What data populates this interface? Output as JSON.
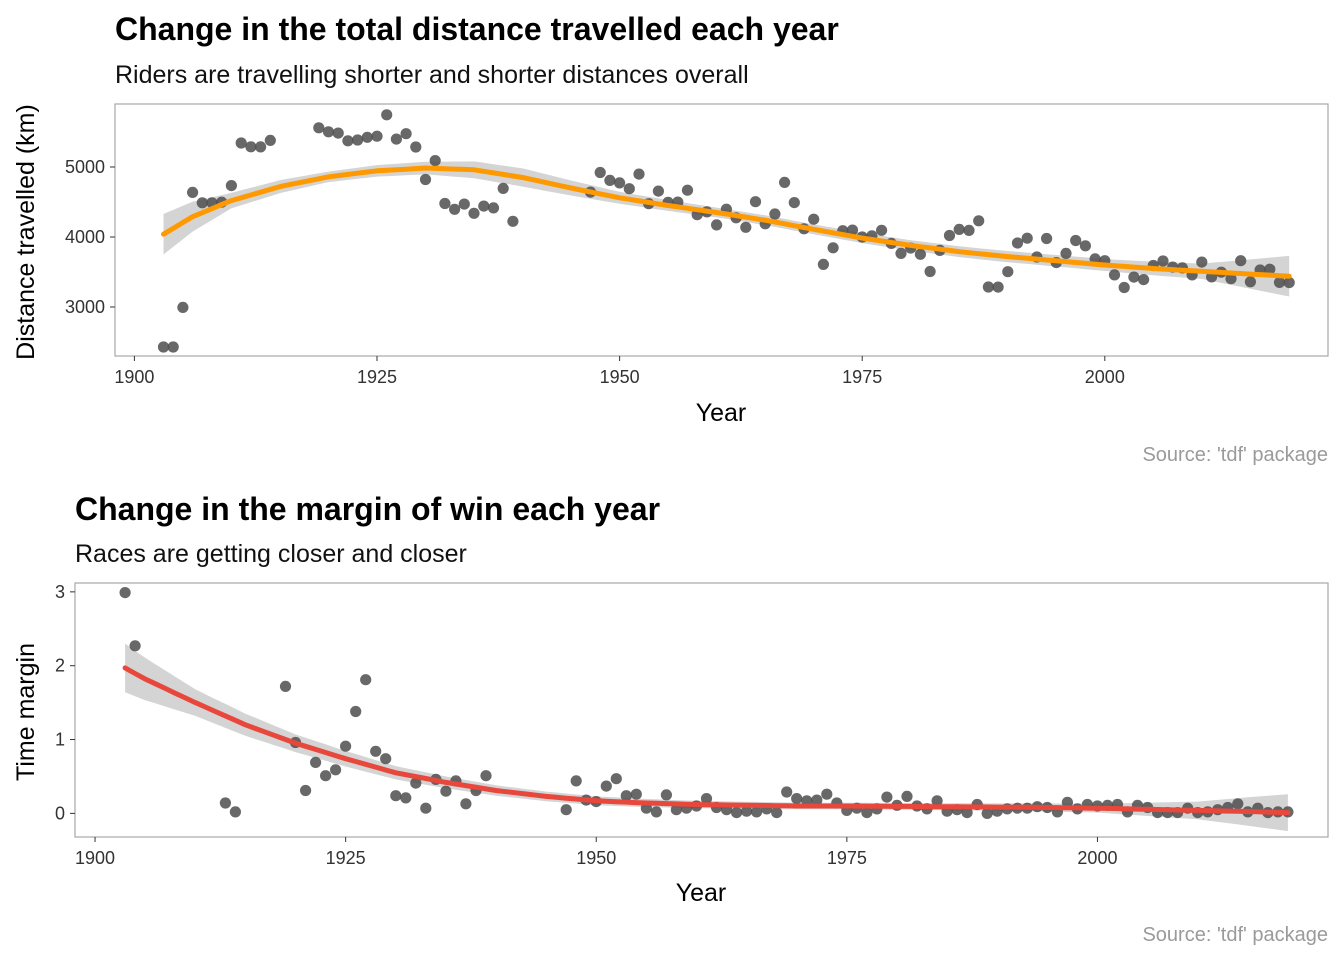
{
  "chart_data": [
    {
      "type": "scatter",
      "title": "Change in the total distance travelled each year",
      "subtitle": "Riders are travelling shorter and shorter distances overall",
      "xlabel": "Year",
      "ylabel": "Distance travelled (km)",
      "caption": "Source: 'tdf' package",
      "xlim": [
        1898,
        2023
      ],
      "ylim": [
        2300,
        5900
      ],
      "xticks": [
        1900,
        1925,
        1950,
        1975,
        2000
      ],
      "yticks": [
        3000,
        4000,
        5000
      ],
      "point_color": "#4d4d4d",
      "smooth_color": "#ff9900",
      "ribbon_color": "#cccccc",
      "grid": false,
      "points": [
        [
          1903,
          2428
        ],
        [
          1904,
          2428
        ],
        [
          1905,
          2994
        ],
        [
          1906,
          4637
        ],
        [
          1907,
          4488
        ],
        [
          1908,
          4488
        ],
        [
          1909,
          4497
        ],
        [
          1910,
          4734
        ],
        [
          1911,
          5343
        ],
        [
          1912,
          5289
        ],
        [
          1913,
          5287
        ],
        [
          1914,
          5380
        ],
        [
          1919,
          5560
        ],
        [
          1920,
          5503
        ],
        [
          1921,
          5485
        ],
        [
          1922,
          5375
        ],
        [
          1923,
          5386
        ],
        [
          1924,
          5425
        ],
        [
          1925,
          5440
        ],
        [
          1926,
          5745
        ],
        [
          1927,
          5398
        ],
        [
          1928,
          5476
        ],
        [
          1929,
          5286
        ],
        [
          1930,
          4822
        ],
        [
          1931,
          5091
        ],
        [
          1932,
          4479
        ],
        [
          1933,
          4395
        ],
        [
          1934,
          4470
        ],
        [
          1935,
          4338
        ],
        [
          1936,
          4442
        ],
        [
          1937,
          4415
        ],
        [
          1938,
          4694
        ],
        [
          1939,
          4224
        ],
        [
          1947,
          4642
        ],
        [
          1948,
          4922
        ],
        [
          1949,
          4808
        ],
        [
          1950,
          4773
        ],
        [
          1951,
          4690
        ],
        [
          1952,
          4898
        ],
        [
          1953,
          4476
        ],
        [
          1954,
          4656
        ],
        [
          1955,
          4495
        ],
        [
          1956,
          4498
        ],
        [
          1957,
          4669
        ],
        [
          1958,
          4319
        ],
        [
          1959,
          4358
        ],
        [
          1960,
          4173
        ],
        [
          1961,
          4397
        ],
        [
          1962,
          4274
        ],
        [
          1963,
          4138
        ],
        [
          1964,
          4504
        ],
        [
          1965,
          4188
        ],
        [
          1966,
          4329
        ],
        [
          1967,
          4780
        ],
        [
          1968,
          4492
        ],
        [
          1969,
          4117
        ],
        [
          1970,
          4254
        ],
        [
          1971,
          3608
        ],
        [
          1972,
          3846
        ],
        [
          1973,
          4090
        ],
        [
          1974,
          4098
        ],
        [
          1975,
          4000
        ],
        [
          1976,
          4017
        ],
        [
          1977,
          4096
        ],
        [
          1978,
          3908
        ],
        [
          1979,
          3765
        ],
        [
          1980,
          3842
        ],
        [
          1981,
          3753
        ],
        [
          1982,
          3507
        ],
        [
          1983,
          3809
        ],
        [
          1984,
          4021
        ],
        [
          1985,
          4109
        ],
        [
          1986,
          4094
        ],
        [
          1987,
          4231
        ],
        [
          1988,
          3286
        ],
        [
          1989,
          3285
        ],
        [
          1990,
          3504
        ],
        [
          1991,
          3914
        ],
        [
          1992,
          3983
        ],
        [
          1993,
          3714
        ],
        [
          1994,
          3978
        ],
        [
          1995,
          3635
        ],
        [
          1996,
          3765
        ],
        [
          1997,
          3950
        ],
        [
          1998,
          3875
        ],
        [
          1999,
          3687
        ],
        [
          2000,
          3662
        ],
        [
          2001,
          3458
        ],
        [
          2002,
          3278
        ],
        [
          2003,
          3427
        ],
        [
          2004,
          3391
        ],
        [
          2005,
          3593
        ],
        [
          2006,
          3657
        ],
        [
          2007,
          3570
        ],
        [
          2008,
          3559
        ],
        [
          2009,
          3459
        ],
        [
          2010,
          3642
        ],
        [
          2011,
          3430
        ],
        [
          2012,
          3497
        ],
        [
          2013,
          3404
        ],
        [
          2014,
          3661
        ],
        [
          2015,
          3360
        ],
        [
          2016,
          3529
        ],
        [
          2017,
          3540
        ],
        [
          2018,
          3351
        ],
        [
          2019,
          3349
        ]
      ],
      "smooth": [
        [
          1903,
          4040
        ],
        [
          1906,
          4290
        ],
        [
          1910,
          4520
        ],
        [
          1915,
          4720
        ],
        [
          1920,
          4860
        ],
        [
          1925,
          4945
        ],
        [
          1930,
          4985
        ],
        [
          1935,
          4960
        ],
        [
          1940,
          4850
        ],
        [
          1945,
          4700
        ],
        [
          1950,
          4560
        ],
        [
          1955,
          4450
        ],
        [
          1960,
          4350
        ],
        [
          1965,
          4240
        ],
        [
          1970,
          4110
        ],
        [
          1975,
          3985
        ],
        [
          1980,
          3880
        ],
        [
          1985,
          3790
        ],
        [
          1990,
          3720
        ],
        [
          1995,
          3660
        ],
        [
          2000,
          3600
        ],
        [
          2005,
          3550
        ],
        [
          2010,
          3510
        ],
        [
          2015,
          3470
        ],
        [
          2019,
          3440
        ]
      ],
      "ribbon_halfwidth": [
        [
          1903,
          290
        ],
        [
          1910,
          110
        ],
        [
          1920,
          75
        ],
        [
          1930,
          90
        ],
        [
          1935,
          120
        ],
        [
          1940,
          130
        ],
        [
          1950,
          85
        ],
        [
          1960,
          70
        ],
        [
          1970,
          70
        ],
        [
          1980,
          75
        ],
        [
          1990,
          80
        ],
        [
          2000,
          85
        ],
        [
          2010,
          110
        ],
        [
          2019,
          290
        ]
      ]
    },
    {
      "type": "scatter",
      "title": "Change in the margin of win each year",
      "subtitle": "Races are getting closer and closer",
      "xlabel": "Year",
      "ylabel": "Time margin",
      "caption": "Source: 'tdf' package",
      "xlim": [
        1898,
        2023
      ],
      "ylim": [
        -0.32,
        3.12
      ],
      "xticks": [
        1900,
        1925,
        1950,
        1975,
        2000
      ],
      "yticks": [
        0,
        1,
        2,
        3
      ],
      "point_color": "#4d4d4d",
      "smooth_color": "#e8473c",
      "ribbon_color": "#cccccc",
      "grid": false,
      "points": [
        [
          1903,
          2.99
        ],
        [
          1904,
          2.27
        ],
        [
          1913,
          0.14
        ],
        [
          1914,
          0.02
        ],
        [
          1919,
          1.72
        ],
        [
          1920,
          0.96
        ],
        [
          1921,
          0.31
        ],
        [
          1922,
          0.69
        ],
        [
          1923,
          0.51
        ],
        [
          1924,
          0.59
        ],
        [
          1925,
          0.91
        ],
        [
          1926,
          1.38
        ],
        [
          1927,
          1.81
        ],
        [
          1928,
          0.84
        ],
        [
          1929,
          0.74
        ],
        [
          1930,
          0.24
        ],
        [
          1931,
          0.21
        ],
        [
          1932,
          0.41
        ],
        [
          1933,
          0.07
        ],
        [
          1934,
          0.46
        ],
        [
          1935,
          0.3
        ],
        [
          1936,
          0.44
        ],
        [
          1937,
          0.13
        ],
        [
          1938,
          0.31
        ],
        [
          1939,
          0.51
        ],
        [
          1947,
          0.05
        ],
        [
          1948,
          0.44
        ],
        [
          1949,
          0.18
        ],
        [
          1950,
          0.16
        ],
        [
          1951,
          0.37
        ],
        [
          1952,
          0.47
        ],
        [
          1953,
          0.24
        ],
        [
          1954,
          0.26
        ],
        [
          1955,
          0.07
        ],
        [
          1956,
          0.02
        ],
        [
          1957,
          0.25
        ],
        [
          1958,
          0.05
        ],
        [
          1959,
          0.07
        ],
        [
          1960,
          0.1
        ],
        [
          1961,
          0.2
        ],
        [
          1962,
          0.08
        ],
        [
          1963,
          0.05
        ],
        [
          1964,
          0.01
        ],
        [
          1965,
          0.03
        ],
        [
          1966,
          0.02
        ],
        [
          1967,
          0.06
        ],
        [
          1968,
          0.01
        ],
        [
          1969,
          0.29
        ],
        [
          1970,
          0.2
        ],
        [
          1971,
          0.17
        ],
        [
          1972,
          0.18
        ],
        [
          1973,
          0.26
        ],
        [
          1974,
          0.14
        ],
        [
          1975,
          0.04
        ],
        [
          1976,
          0.07
        ],
        [
          1977,
          0.01
        ],
        [
          1978,
          0.06
        ],
        [
          1979,
          0.22
        ],
        [
          1980,
          0.11
        ],
        [
          1981,
          0.23
        ],
        [
          1982,
          0.1
        ],
        [
          1983,
          0.06
        ],
        [
          1984,
          0.17
        ],
        [
          1985,
          0.03
        ],
        [
          1986,
          0.05
        ],
        [
          1987,
          0.01
        ],
        [
          1988,
          0.12
        ],
        [
          1989,
          0.0
        ],
        [
          1990,
          0.03
        ],
        [
          1991,
          0.06
        ],
        [
          1992,
          0.07
        ],
        [
          1993,
          0.07
        ],
        [
          1994,
          0.09
        ],
        [
          1995,
          0.08
        ],
        [
          1996,
          0.02
        ],
        [
          1997,
          0.15
        ],
        [
          1998,
          0.06
        ],
        [
          1999,
          0.12
        ],
        [
          2000,
          0.1
        ],
        [
          2001,
          0.11
        ],
        [
          2002,
          0.12
        ],
        [
          2003,
          0.02
        ],
        [
          2004,
          0.11
        ],
        [
          2005,
          0.08
        ],
        [
          2006,
          0.01
        ],
        [
          2007,
          0.01
        ],
        [
          2008,
          0.01
        ],
        [
          2009,
          0.07
        ],
        [
          2010,
          0.01
        ],
        [
          2011,
          0.02
        ],
        [
          2012,
          0.05
        ],
        [
          2013,
          0.08
        ],
        [
          2014,
          0.13
        ],
        [
          2015,
          0.02
        ],
        [
          2016,
          0.07
        ],
        [
          2017,
          0.01
        ],
        [
          2018,
          0.02
        ],
        [
          2019,
          0.02
        ]
      ],
      "smooth": [
        [
          1903,
          1.97
        ],
        [
          1905,
          1.82
        ],
        [
          1910,
          1.5
        ],
        [
          1915,
          1.2
        ],
        [
          1920,
          0.95
        ],
        [
          1925,
          0.74
        ],
        [
          1930,
          0.55
        ],
        [
          1935,
          0.42
        ],
        [
          1940,
          0.31
        ],
        [
          1945,
          0.23
        ],
        [
          1950,
          0.17
        ],
        [
          1955,
          0.14
        ],
        [
          1960,
          0.12
        ],
        [
          1965,
          0.11
        ],
        [
          1970,
          0.1
        ],
        [
          1975,
          0.1
        ],
        [
          1980,
          0.095
        ],
        [
          1985,
          0.09
        ],
        [
          1990,
          0.085
        ],
        [
          1995,
          0.08
        ],
        [
          2000,
          0.07
        ],
        [
          2005,
          0.055
        ],
        [
          2010,
          0.04
        ],
        [
          2015,
          0.025
        ],
        [
          2019,
          0.01
        ]
      ],
      "ribbon_halfwidth": [
        [
          1903,
          0.33
        ],
        [
          1910,
          0.18
        ],
        [
          1920,
          0.12
        ],
        [
          1930,
          0.09
        ],
        [
          1940,
          0.07
        ],
        [
          1950,
          0.06
        ],
        [
          1960,
          0.05
        ],
        [
          1970,
          0.045
        ],
        [
          1980,
          0.045
        ],
        [
          1990,
          0.05
        ],
        [
          2000,
          0.06
        ],
        [
          2010,
          0.12
        ],
        [
          2019,
          0.25
        ]
      ]
    }
  ]
}
